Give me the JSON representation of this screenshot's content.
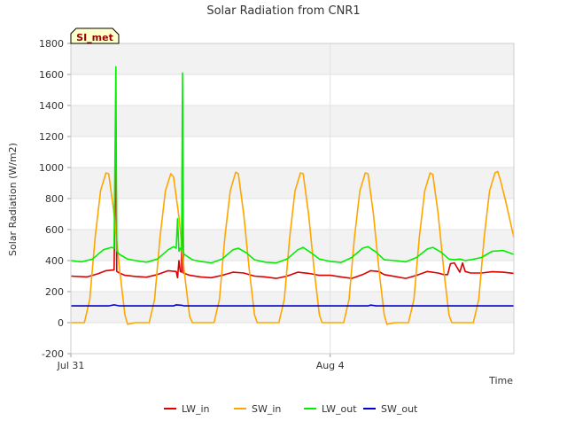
{
  "chart_data": {
    "type": "line",
    "title": "Solar Radiation from CNR1",
    "xlabel": "Time",
    "ylabel": "Solar Radiation (W/m2)",
    "badge": "SI_met",
    "x_ticks": [
      "Jul 31",
      "Aug 4"
    ],
    "ylim": [
      -200,
      1800
    ],
    "y_ticks": [
      -200,
      0,
      200,
      400,
      600,
      800,
      1000,
      1200,
      1400,
      1600,
      1800
    ],
    "xlim": [
      "2018-07-31 00:00",
      "2018-08-06 20:00"
    ],
    "grid": true,
    "legend_position": "bottom",
    "colors": {
      "LW_in": "#dd0000",
      "SW_in": "#ffa500",
      "LW_out": "#00ee00",
      "SW_out": "#0000cc"
    },
    "series": [
      {
        "name": "LW_in",
        "points": [
          [
            "2018-07-31 00:00",
            300
          ],
          [
            "2018-07-31 06:00",
            295
          ],
          [
            "2018-07-31 10:00",
            315
          ],
          [
            "2018-07-31 13:00",
            335
          ],
          [
            "2018-07-31 16:00",
            340
          ],
          [
            "2018-07-31 16:40",
            1270
          ],
          [
            "2018-07-31 17:00",
            330
          ],
          [
            "2018-07-31 18:00",
            320
          ],
          [
            "2018-07-31 20:00",
            305
          ],
          [
            "2018-08-01 00:00",
            298
          ],
          [
            "2018-08-01 04:00",
            293
          ],
          [
            "2018-08-01 08:00",
            310
          ],
          [
            "2018-08-01 12:00",
            335
          ],
          [
            "2018-08-01 15:00",
            330
          ],
          [
            "2018-08-01 15:30",
            290
          ],
          [
            "2018-08-01 16:00",
            400
          ],
          [
            "2018-08-01 16:30",
            330
          ],
          [
            "2018-08-01 17:00",
            325
          ],
          [
            "2018-08-01 17:20",
            1240
          ],
          [
            "2018-08-01 17:40",
            320
          ],
          [
            "2018-08-01 20:00",
            305
          ],
          [
            "2018-08-02 00:00",
            295
          ],
          [
            "2018-08-02 04:00",
            290
          ],
          [
            "2018-08-02 08:00",
            305
          ],
          [
            "2018-08-02 12:00",
            325
          ],
          [
            "2018-08-02 16:00",
            320
          ],
          [
            "2018-08-02 20:00",
            300
          ],
          [
            "2018-08-03 00:00",
            295
          ],
          [
            "2018-08-03 04:00",
            285
          ],
          [
            "2018-08-03 08:00",
            300
          ],
          [
            "2018-08-03 12:00",
            325
          ],
          [
            "2018-08-03 16:00",
            318
          ],
          [
            "2018-08-03 20:00",
            305
          ],
          [
            "2018-08-04 00:00",
            305
          ],
          [
            "2018-08-04 04:00",
            295
          ],
          [
            "2018-08-04 08:00",
            285
          ],
          [
            "2018-08-04 12:00",
            310
          ],
          [
            "2018-08-04 15:00",
            335
          ],
          [
            "2018-08-04 18:00",
            330
          ],
          [
            "2018-08-04 20:00",
            310
          ],
          [
            "2018-08-05 00:00",
            298
          ],
          [
            "2018-08-05 04:00",
            285
          ],
          [
            "2018-08-05 08:00",
            305
          ],
          [
            "2018-08-05 12:00",
            330
          ],
          [
            "2018-08-05 16:00",
            320
          ],
          [
            "2018-08-05 18:00",
            310
          ],
          [
            "2018-08-05 19:30",
            310
          ],
          [
            "2018-08-05 20:30",
            380
          ],
          [
            "2018-08-05 22:00",
            385
          ],
          [
            "2018-08-06 00:00",
            325
          ],
          [
            "2018-08-06 01:00",
            385
          ],
          [
            "2018-08-06 02:00",
            330
          ],
          [
            "2018-08-06 04:00",
            320
          ],
          [
            "2018-08-06 08:00",
            320
          ],
          [
            "2018-08-06 12:00",
            328
          ],
          [
            "2018-08-06 16:00",
            325
          ],
          [
            "2018-08-06 20:00",
            318
          ]
        ]
      },
      {
        "name": "SW_in",
        "points": [
          [
            "2018-07-31 00:00",
            0
          ],
          [
            "2018-07-31 05:00",
            0
          ],
          [
            "2018-07-31 07:00",
            150
          ],
          [
            "2018-07-31 09:00",
            550
          ],
          [
            "2018-07-31 11:00",
            850
          ],
          [
            "2018-07-31 13:00",
            965
          ],
          [
            "2018-07-31 14:00",
            960
          ],
          [
            "2018-07-31 16:00",
            700
          ],
          [
            "2018-07-31 18:00",
            350
          ],
          [
            "2018-07-31 20:00",
            50
          ],
          [
            "2018-07-31 21:00",
            -10
          ],
          [
            "2018-08-01 00:00",
            0
          ],
          [
            "2018-08-01 05:00",
            0
          ],
          [
            "2018-08-01 07:00",
            150
          ],
          [
            "2018-08-01 09:00",
            550
          ],
          [
            "2018-08-01 11:00",
            850
          ],
          [
            "2018-08-01 13:00",
            960
          ],
          [
            "2018-08-01 14:00",
            940
          ],
          [
            "2018-08-01 16:00",
            680
          ],
          [
            "2018-08-01 18:00",
            330
          ],
          [
            "2018-08-01 20:00",
            40
          ],
          [
            "2018-08-01 21:00",
            0
          ],
          [
            "2018-08-02 05:00",
            0
          ],
          [
            "2018-08-02 07:00",
            150
          ],
          [
            "2018-08-02 09:00",
            550
          ],
          [
            "2018-08-02 11:00",
            850
          ],
          [
            "2018-08-02 13:00",
            970
          ],
          [
            "2018-08-02 14:00",
            960
          ],
          [
            "2018-08-02 16:00",
            700
          ],
          [
            "2018-08-02 18:00",
            350
          ],
          [
            "2018-08-02 20:00",
            50
          ],
          [
            "2018-08-02 21:00",
            0
          ],
          [
            "2018-08-03 05:00",
            0
          ],
          [
            "2018-08-03 07:00",
            150
          ],
          [
            "2018-08-03 09:00",
            550
          ],
          [
            "2018-08-03 11:00",
            850
          ],
          [
            "2018-08-03 13:00",
            965
          ],
          [
            "2018-08-03 14:00",
            960
          ],
          [
            "2018-08-03 16:00",
            700
          ],
          [
            "2018-08-03 18:00",
            350
          ],
          [
            "2018-08-03 20:00",
            50
          ],
          [
            "2018-08-03 21:00",
            0
          ],
          [
            "2018-08-04 05:00",
            0
          ],
          [
            "2018-08-04 07:00",
            150
          ],
          [
            "2018-08-04 09:00",
            550
          ],
          [
            "2018-08-04 11:00",
            850
          ],
          [
            "2018-08-04 13:00",
            965
          ],
          [
            "2018-08-04 14:00",
            960
          ],
          [
            "2018-08-04 16:00",
            700
          ],
          [
            "2018-08-04 18:00",
            350
          ],
          [
            "2018-08-04 20:00",
            50
          ],
          [
            "2018-08-04 21:00",
            -10
          ],
          [
            "2018-08-05 00:00",
            0
          ],
          [
            "2018-08-05 05:00",
            0
          ],
          [
            "2018-08-05 07:00",
            150
          ],
          [
            "2018-08-05 09:00",
            550
          ],
          [
            "2018-08-05 11:00",
            850
          ],
          [
            "2018-08-05 13:00",
            965
          ],
          [
            "2018-08-05 14:00",
            955
          ],
          [
            "2018-08-05 16:00",
            700
          ],
          [
            "2018-08-05 18:00",
            350
          ],
          [
            "2018-08-05 20:00",
            50
          ],
          [
            "2018-08-05 21:00",
            0
          ],
          [
            "2018-08-06 05:00",
            0
          ],
          [
            "2018-08-06 07:00",
            150
          ],
          [
            "2018-08-06 09:00",
            550
          ],
          [
            "2018-08-06 11:00",
            850
          ],
          [
            "2018-08-06 13:00",
            965
          ],
          [
            "2018-08-06 14:00",
            975
          ],
          [
            "2018-08-06 15:00",
            920
          ],
          [
            "2018-08-06 17:00",
            780
          ],
          [
            "2018-08-06 20:00",
            550
          ]
        ]
      },
      {
        "name": "LW_out",
        "points": [
          [
            "2018-07-31 00:00",
            400
          ],
          [
            "2018-07-31 04:00",
            392
          ],
          [
            "2018-07-31 08:00",
            410
          ],
          [
            "2018-07-31 12:00",
            470
          ],
          [
            "2018-07-31 15:00",
            485
          ],
          [
            "2018-07-31 16:00",
            480
          ],
          [
            "2018-07-31 16:40",
            1650
          ],
          [
            "2018-07-31 17:00",
            460
          ],
          [
            "2018-07-31 18:00",
            440
          ],
          [
            "2018-07-31 21:00",
            410
          ],
          [
            "2018-08-01 00:00",
            400
          ],
          [
            "2018-08-01 04:00",
            390
          ],
          [
            "2018-08-01 08:00",
            410
          ],
          [
            "2018-08-01 12:00",
            470
          ],
          [
            "2018-08-01 14:00",
            490
          ],
          [
            "2018-08-01 15:00",
            480
          ],
          [
            "2018-08-01 15:30",
            670
          ],
          [
            "2018-08-01 16:00",
            460
          ],
          [
            "2018-08-01 16:30",
            480
          ],
          [
            "2018-08-01 17:00",
            470
          ],
          [
            "2018-08-01 17:20",
            1610
          ],
          [
            "2018-08-01 17:40",
            450
          ],
          [
            "2018-08-01 18:00",
            440
          ],
          [
            "2018-08-01 21:00",
            405
          ],
          [
            "2018-08-02 00:00",
            395
          ],
          [
            "2018-08-02 04:00",
            385
          ],
          [
            "2018-08-02 08:00",
            410
          ],
          [
            "2018-08-02 12:00",
            470
          ],
          [
            "2018-08-02 14:00",
            480
          ],
          [
            "2018-08-02 17:00",
            450
          ],
          [
            "2018-08-02 20:00",
            405
          ],
          [
            "2018-08-03 00:00",
            390
          ],
          [
            "2018-08-03 04:00",
            385
          ],
          [
            "2018-08-03 08:00",
            410
          ],
          [
            "2018-08-03 12:00",
            470
          ],
          [
            "2018-08-03 14:00",
            485
          ],
          [
            "2018-08-03 17:00",
            450
          ],
          [
            "2018-08-03 20:00",
            410
          ],
          [
            "2018-08-04 00:00",
            395
          ],
          [
            "2018-08-04 04:00",
            388
          ],
          [
            "2018-08-04 08:00",
            420
          ],
          [
            "2018-08-04 12:00",
            480
          ],
          [
            "2018-08-04 14:00",
            490
          ],
          [
            "2018-08-04 17:00",
            455
          ],
          [
            "2018-08-04 20:00",
            405
          ],
          [
            "2018-08-05 00:00",
            400
          ],
          [
            "2018-08-05 04:00",
            392
          ],
          [
            "2018-08-05 08:00",
            420
          ],
          [
            "2018-08-05 12:00",
            475
          ],
          [
            "2018-08-05 14:00",
            485
          ],
          [
            "2018-08-05 17:00",
            455
          ],
          [
            "2018-08-05 20:00",
            410
          ],
          [
            "2018-08-05 22:00",
            405
          ],
          [
            "2018-08-06 00:00",
            410
          ],
          [
            "2018-08-06 02:00",
            400
          ],
          [
            "2018-08-06 04:00",
            405
          ],
          [
            "2018-08-06 08:00",
            420
          ],
          [
            "2018-08-06 12:00",
            460
          ],
          [
            "2018-08-06 16:00",
            465
          ],
          [
            "2018-08-06 20:00",
            440
          ]
        ]
      },
      {
        "name": "SW_out",
        "points": [
          [
            "2018-07-31 00:00",
            108
          ],
          [
            "2018-07-31 14:00",
            108
          ],
          [
            "2018-07-31 16:00",
            115
          ],
          [
            "2018-07-31 18:00",
            108
          ],
          [
            "2018-08-01 14:00",
            108
          ],
          [
            "2018-08-01 15:00",
            115
          ],
          [
            "2018-08-01 17:00",
            112
          ],
          [
            "2018-08-01 18:00",
            108
          ],
          [
            "2018-08-04 14:00",
            108
          ],
          [
            "2018-08-04 15:00",
            113
          ],
          [
            "2018-08-04 17:00",
            108
          ],
          [
            "2018-08-06 20:00",
            108
          ]
        ]
      }
    ]
  }
}
